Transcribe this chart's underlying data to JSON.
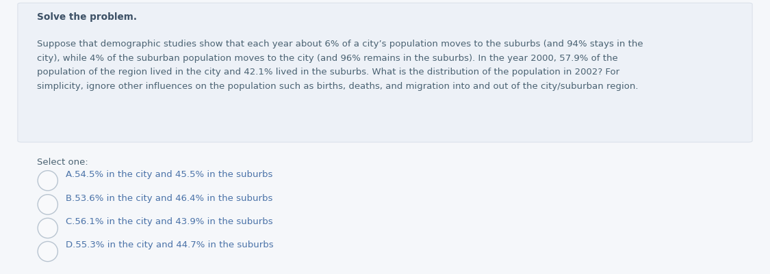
{
  "title": "Solve the problem.",
  "question_text": "Suppose that demographic studies show that each year about 6% of a city’s population moves to the suburbs (and 94% stays in the\ncity), while 4% of the suburban population moves to the city (and 96% remains in the suburbs). In the year 2000, 57.9% of the\npopulation of the region lived in the city and 42.1% lived in the suburbs. What is the distribution of the population in 2002? For\nsimplicity, ignore other influences on the population such as births, deaths, and migration into and out of the city/suburban region.",
  "select_one_label": "Select one:",
  "options": [
    "A.54.5% in the city and 45.5% in the suburbs",
    "B.53.6% in the city and 46.4% in the suburbs",
    "C.56.1% in the city and 43.9% in the suburbs",
    "D.55.3% in the city and 44.7% in the suburbs"
  ],
  "bg_outer": "#f5f7fa",
  "bg_box": "#edf1f7",
  "title_color": "#3d5166",
  "question_color": "#4a6272",
  "option_color": "#4a72a8",
  "select_one_color": "#4a6272",
  "title_fontsize": 9.8,
  "question_fontsize": 9.5,
  "option_fontsize": 9.5,
  "select_one_fontsize": 9.5,
  "box_edge_color": "#d8dfe8",
  "circle_edge_color": "#b8c4d0",
  "circle_fill": "#f8f9fb"
}
